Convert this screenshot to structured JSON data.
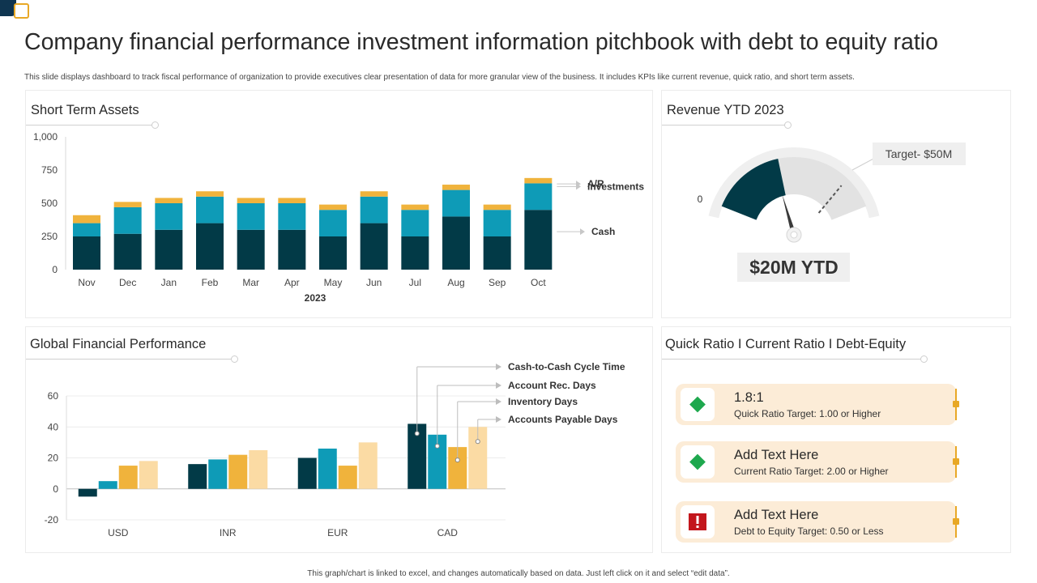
{
  "title": "Company financial performance investment information pitchbook with debt to equity ratio",
  "subtitle": "This slide displays dashboard to track fiscal performance of organization to provide executives clear presentation of data for more granular view of the business. It includes KPIs  like  current revenue, quick ratio, and short term assets.",
  "footer": "This graph/chart is linked to excel, and changes automatically based on data. Just left click on it and select “edit data”.",
  "colors": {
    "dark": "#023a47",
    "teal": "#0e9bb7",
    "gold": "#f0b33c",
    "light_gold": "#fbdba4",
    "gauge_fill": "#023a47",
    "gauge_track": "#e2e2e2",
    "kpi_bg": "#fcecd7",
    "green": "#1ea84e",
    "red": "#c3161c"
  },
  "panels": {
    "short_term_assets": {
      "title": "Short Term Assets"
    },
    "revenue": {
      "title": "Revenue YTD 2023"
    },
    "global": {
      "title": "Global Financial Performance"
    },
    "ratios": {
      "title": "Quick Ratio I Current Ratio I Debt-Equity"
    }
  },
  "chart_data": [
    {
      "id": "short-term-assets",
      "type": "bar",
      "stacked": true,
      "title": "Short Term Assets",
      "categories": [
        "Nov",
        "Dec",
        "Jan",
        "Feb",
        "Mar",
        "Apr",
        "May",
        "Jun",
        "Jul",
        "Aug",
        "Sep",
        "Oct"
      ],
      "series": [
        {
          "name": "Cash",
          "values": [
            250,
            270,
            300,
            350,
            300,
            300,
            250,
            350,
            250,
            400,
            250,
            450
          ]
        },
        {
          "name": "Investments",
          "values": [
            100,
            200,
            200,
            200,
            200,
            200,
            200,
            200,
            200,
            200,
            200,
            200
          ]
        },
        {
          "name": "A/R",
          "values": [
            60,
            40,
            40,
            40,
            40,
            40,
            40,
            40,
            40,
            40,
            40,
            40
          ]
        }
      ],
      "xlabel": "2023",
      "ylabel": "",
      "ylim": [
        0,
        1000
      ],
      "yticks": [
        0,
        250,
        500,
        750,
        1000
      ],
      "ytick_labels": [
        "0",
        "250",
        "500",
        "750",
        "1,000"
      ],
      "legend": [
        "A/R",
        "Investments",
        "Cash"
      ],
      "legend_position": "right"
    },
    {
      "id": "revenue-gauge",
      "type": "gauge",
      "title": "Revenue YTD 2023",
      "min": 0,
      "max": 50,
      "value": 20,
      "target": 50,
      "min_label": "0",
      "target_label": "Target- $50M",
      "value_label": "$20M YTD"
    },
    {
      "id": "global-financial-performance",
      "type": "bar",
      "title": "Global Financial Performance",
      "categories": [
        "USD",
        "INR",
        "EUR",
        "CAD"
      ],
      "series": [
        {
          "name": "Cash-to-Cash Cycle Time",
          "values": [
            -5,
            16,
            20,
            42
          ]
        },
        {
          "name": "Account Rec. Days",
          "values": [
            5,
            19,
            26,
            35
          ]
        },
        {
          "name": "Inventory Days",
          "values": [
            15,
            22,
            15,
            27
          ]
        },
        {
          "name": "Accounts Payable Days",
          "values": [
            18,
            25,
            30,
            40
          ]
        }
      ],
      "ylim": [
        -20,
        60
      ],
      "yticks": [
        -20,
        0,
        20,
        40,
        60
      ],
      "legend_position": "top-right"
    }
  ],
  "kpis": [
    {
      "value": "1.8:1",
      "label": "Quick Ratio Target:  1.00 or Higher",
      "icon": "green-diamond-icon"
    },
    {
      "value": "Add Text Here",
      "label": "Current Ratio Target: 2.00 or Higher",
      "icon": "green-diamond-icon"
    },
    {
      "value": "Add Text Here",
      "label": "Debt to Equity Target: 0.50 or Less",
      "icon": "red-alert-icon"
    }
  ]
}
